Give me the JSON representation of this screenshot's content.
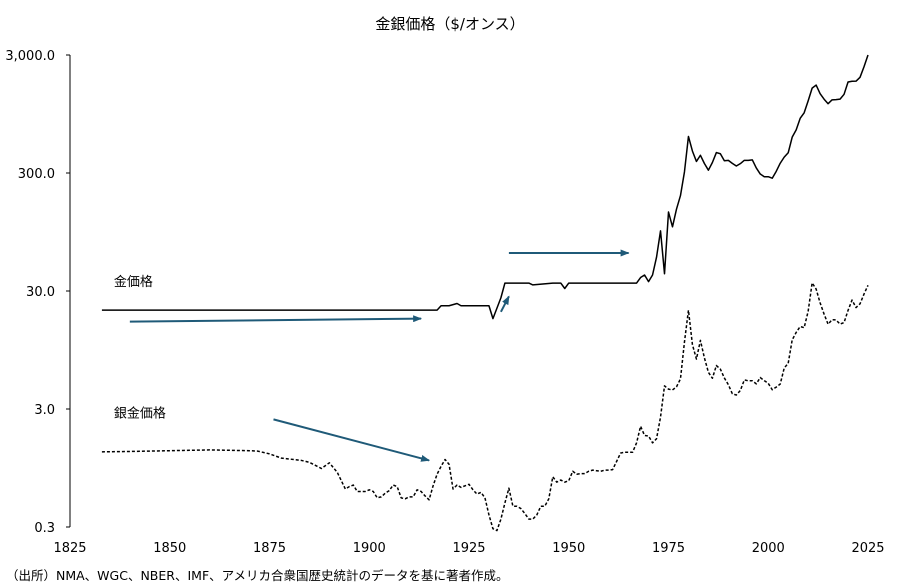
{
  "chart_data": {
    "type": "line",
    "title": "金銀価格（$/オンス）",
    "source_note": "（出所）NMA、WGC、NBER、IMF、アメリカ合衆国歴史統計のデータを基に著者作成。",
    "y_scale": "log",
    "xlim": [
      1825,
      2025
    ],
    "ylim": [
      0.3,
      3000
    ],
    "x_ticks": [
      "1825",
      "1850",
      "1875",
      "1900",
      "1925",
      "1950",
      "1975",
      "2000",
      "2025"
    ],
    "y_ticks": [
      {
        "value": 0.3,
        "label": "0.3"
      },
      {
        "value": 3,
        "label": "3.0"
      },
      {
        "value": 30,
        "label": "30.0"
      },
      {
        "value": 300,
        "label": "300.0"
      },
      {
        "value": 3000,
        "label": "3,000.0"
      }
    ],
    "series": [
      {
        "name": "金価格",
        "style": "solid",
        "color": "#000000",
        "points": [
          [
            1833,
            20.67
          ],
          [
            1900,
            20.67
          ],
          [
            1917,
            20.67
          ],
          [
            1918,
            22.5
          ],
          [
            1920,
            22.5
          ],
          [
            1922,
            23.5
          ],
          [
            1923,
            22.5
          ],
          [
            1930,
            22.5
          ],
          [
            1931,
            17.5
          ],
          [
            1933,
            26.3
          ],
          [
            1934,
            35.0
          ],
          [
            1940,
            35.0
          ],
          [
            1941,
            33.8
          ],
          [
            1946,
            35.0
          ],
          [
            1948,
            35.0
          ],
          [
            1949,
            31.5
          ],
          [
            1950,
            35.0
          ],
          [
            1960,
            35.0
          ],
          [
            1967,
            35.0
          ],
          [
            1968,
            39.0
          ],
          [
            1969,
            41.0
          ],
          [
            1970,
            36.0
          ],
          [
            1971,
            41.0
          ],
          [
            1972,
            58.0
          ],
          [
            1973,
            97.0
          ],
          [
            1974,
            42.0
          ],
          [
            1975,
            140.0
          ],
          [
            1976,
            105.0
          ],
          [
            1977,
            148.0
          ],
          [
            1978,
            193.0
          ],
          [
            1979,
            307.0
          ],
          [
            1980,
            612.0
          ],
          [
            1981,
            460.0
          ],
          [
            1982,
            376.0
          ],
          [
            1983,
            424.0
          ],
          [
            1984,
            361.0
          ],
          [
            1985,
            317.0
          ],
          [
            1986,
            368.0
          ],
          [
            1987,
            447.0
          ],
          [
            1988,
            437.0
          ],
          [
            1989,
            381.0
          ],
          [
            1990,
            384.0
          ],
          [
            1991,
            362.0
          ],
          [
            1992,
            344.0
          ],
          [
            1993,
            360.0
          ],
          [
            1994,
            384.0
          ],
          [
            1995,
            384.0
          ],
          [
            1996,
            388.0
          ],
          [
            1997,
            331.0
          ],
          [
            1998,
            294.0
          ],
          [
            1999,
            279.0
          ],
          [
            2000,
            279.0
          ],
          [
            2001,
            271.0
          ],
          [
            2002,
            310.0
          ],
          [
            2003,
            363.0
          ],
          [
            2004,
            409.0
          ],
          [
            2005,
            445.0
          ],
          [
            2006,
            604.0
          ],
          [
            2007,
            696.0
          ],
          [
            2008,
            872.0
          ],
          [
            2009,
            972.0
          ],
          [
            2010,
            1225.0
          ],
          [
            2011,
            1572.0
          ],
          [
            2012,
            1669.0
          ],
          [
            2013,
            1411.0
          ],
          [
            2014,
            1266.0
          ],
          [
            2015,
            1160.0
          ],
          [
            2016,
            1251.0
          ],
          [
            2017,
            1257.0
          ],
          [
            2018,
            1268.0
          ],
          [
            2019,
            1393.0
          ],
          [
            2020,
            1770.0
          ],
          [
            2021,
            1799.0
          ],
          [
            2022,
            1800.0
          ],
          [
            2023,
            1941.0
          ],
          [
            2024,
            2386.0
          ],
          [
            2025,
            3000.0
          ]
        ]
      },
      {
        "name": "銀金価格",
        "style": "dashed",
        "color": "#000000",
        "points": [
          [
            1833,
            1.3
          ],
          [
            1840,
            1.31
          ],
          [
            1850,
            1.33
          ],
          [
            1860,
            1.35
          ],
          [
            1870,
            1.33
          ],
          [
            1872,
            1.32
          ],
          [
            1875,
            1.25
          ],
          [
            1878,
            1.15
          ],
          [
            1880,
            1.13
          ],
          [
            1883,
            1.1
          ],
          [
            1885,
            1.06
          ],
          [
            1888,
            0.94
          ],
          [
            1890,
            1.05
          ],
          [
            1892,
            0.87
          ],
          [
            1894,
            0.63
          ],
          [
            1895,
            0.66
          ],
          [
            1896,
            0.68
          ],
          [
            1897,
            0.6
          ],
          [
            1899,
            0.6
          ],
          [
            1900,
            0.62
          ],
          [
            1901,
            0.6
          ],
          [
            1902,
            0.53
          ],
          [
            1903,
            0.54
          ],
          [
            1904,
            0.58
          ],
          [
            1905,
            0.61
          ],
          [
            1906,
            0.68
          ],
          [
            1907,
            0.66
          ],
          [
            1908,
            0.53
          ],
          [
            1909,
            0.52
          ],
          [
            1910,
            0.54
          ],
          [
            1911,
            0.54
          ],
          [
            1912,
            0.62
          ],
          [
            1913,
            0.6
          ],
          [
            1914,
            0.55
          ],
          [
            1915,
            0.51
          ],
          [
            1916,
            0.67
          ],
          [
            1917,
            0.84
          ],
          [
            1918,
            0.98
          ],
          [
            1919,
            1.12
          ],
          [
            1920,
            1.02
          ],
          [
            1921,
            0.63
          ],
          [
            1922,
            0.68
          ],
          [
            1923,
            0.65
          ],
          [
            1924,
            0.67
          ],
          [
            1925,
            0.69
          ],
          [
            1926,
            0.62
          ],
          [
            1927,
            0.57
          ],
          [
            1928,
            0.59
          ],
          [
            1929,
            0.53
          ],
          [
            1930,
            0.38
          ],
          [
            1931,
            0.29
          ],
          [
            1932,
            0.28
          ],
          [
            1933,
            0.35
          ],
          [
            1934,
            0.48
          ],
          [
            1935,
            0.64
          ],
          [
            1936,
            0.45
          ],
          [
            1937,
            0.45
          ],
          [
            1938,
            0.43
          ],
          [
            1939,
            0.39
          ],
          [
            1940,
            0.35
          ],
          [
            1941,
            0.35
          ],
          [
            1942,
            0.38
          ],
          [
            1943,
            0.45
          ],
          [
            1944,
            0.45
          ],
          [
            1945,
            0.52
          ],
          [
            1946,
            0.8
          ],
          [
            1947,
            0.72
          ],
          [
            1948,
            0.75
          ],
          [
            1949,
            0.72
          ],
          [
            1950,
            0.74
          ],
          [
            1951,
            0.89
          ],
          [
            1952,
            0.84
          ],
          [
            1953,
            0.85
          ],
          [
            1954,
            0.85
          ],
          [
            1955,
            0.89
          ],
          [
            1956,
            0.91
          ],
          [
            1957,
            0.9
          ],
          [
            1958,
            0.89
          ],
          [
            1959,
            0.91
          ],
          [
            1960,
            0.91
          ],
          [
            1961,
            0.92
          ],
          [
            1962,
            1.08
          ],
          [
            1963,
            1.27
          ],
          [
            1964,
            1.29
          ],
          [
            1965,
            1.29
          ],
          [
            1966,
            1.29
          ],
          [
            1967,
            1.55
          ],
          [
            1968,
            2.14
          ],
          [
            1969,
            1.79
          ],
          [
            1970,
            1.77
          ],
          [
            1971,
            1.55
          ],
          [
            1972,
            1.68
          ],
          [
            1973,
            2.56
          ],
          [
            1974,
            4.71
          ],
          [
            1975,
            4.42
          ],
          [
            1976,
            4.35
          ],
          [
            1977,
            4.62
          ],
          [
            1978,
            5.4
          ],
          [
            1979,
            11.09
          ],
          [
            1980,
            20.63
          ],
          [
            1981,
            10.52
          ],
          [
            1982,
            7.95
          ],
          [
            1983,
            11.44
          ],
          [
            1984,
            8.14
          ],
          [
            1985,
            6.14
          ],
          [
            1986,
            5.47
          ],
          [
            1987,
            7.01
          ],
          [
            1988,
            6.53
          ],
          [
            1989,
            5.5
          ],
          [
            1990,
            4.82
          ],
          [
            1991,
            4.04
          ],
          [
            1992,
            3.94
          ],
          [
            1993,
            4.3
          ],
          [
            1994,
            5.29
          ],
          [
            1995,
            5.2
          ],
          [
            1996,
            5.2
          ],
          [
            1997,
            4.9
          ],
          [
            1998,
            5.54
          ],
          [
            1999,
            5.22
          ],
          [
            2000,
            4.95
          ],
          [
            2001,
            4.37
          ],
          [
            2002,
            4.6
          ],
          [
            2003,
            4.88
          ],
          [
            2004,
            6.67
          ],
          [
            2005,
            7.32
          ],
          [
            2006,
            11.55
          ],
          [
            2007,
            13.38
          ],
          [
            2008,
            14.99
          ],
          [
            2009,
            14.67
          ],
          [
            2010,
            20.19
          ],
          [
            2011,
            35.12
          ],
          [
            2012,
            31.15
          ],
          [
            2013,
            23.79
          ],
          [
            2014,
            19.08
          ],
          [
            2015,
            15.68
          ],
          [
            2016,
            17.14
          ],
          [
            2017,
            17.05
          ],
          [
            2018,
            15.71
          ],
          [
            2019,
            16.21
          ],
          [
            2020,
            20.55
          ],
          [
            2021,
            25.14
          ],
          [
            2022,
            21.73
          ],
          [
            2023,
            23.35
          ],
          [
            2024,
            28.27
          ],
          [
            2025,
            33.5
          ]
        ]
      }
    ],
    "annotations": [
      {
        "type": "label",
        "text": "金価格",
        "x": 1836,
        "y": 33
      },
      {
        "type": "label",
        "text": "銀金価格",
        "x": 1836,
        "y": 2.55
      },
      {
        "type": "arrow",
        "from": [
          1840,
          16.5
        ],
        "to": [
          1913,
          17.5
        ],
        "color": "#1f5a78"
      },
      {
        "type": "arrow",
        "from": [
          1876,
          2.45
        ],
        "to": [
          1915,
          1.1
        ],
        "color": "#1f5a78"
      },
      {
        "type": "arrow",
        "from": [
          1933,
          20.0
        ],
        "to": [
          1935,
          27.0
        ],
        "color": "#1f5a78"
      },
      {
        "type": "arrow",
        "from": [
          1935,
          63.0
        ],
        "to": [
          1965,
          63.0
        ],
        "color": "#1f5a78"
      }
    ],
    "grid": false,
    "legend": "none"
  }
}
